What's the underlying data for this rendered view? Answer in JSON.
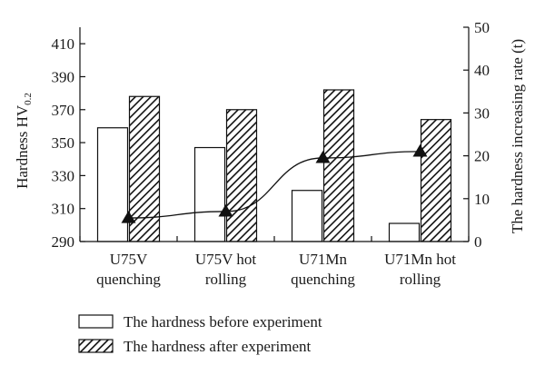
{
  "chart_data": {
    "type": "bar",
    "categories": [
      [
        "U75V",
        "quenching"
      ],
      [
        "U75V hot",
        "rolling"
      ],
      [
        "U71Mn",
        "quenching"
      ],
      [
        "U71Mn hot",
        "rolling"
      ]
    ],
    "series": [
      {
        "name": "The hardness before experiment",
        "axis": "left",
        "kind": "bar",
        "pattern": "none",
        "values": [
          359,
          347,
          321,
          301
        ]
      },
      {
        "name": "The hardness after experiment",
        "axis": "left",
        "kind": "bar",
        "pattern": "hatched",
        "values": [
          378,
          370,
          382,
          364
        ]
      },
      {
        "axis": "right",
        "kind": "line",
        "marker": "triangle",
        "values": [
          5.5,
          7.0,
          19.5,
          21.0
        ]
      }
    ],
    "ylabel": "Hardness HV",
    "ylabel_subscript": "0.2",
    "ylabel_right": "The hardness increasing rate (t)",
    "ylim": [
      290,
      420
    ],
    "yticks": [
      290,
      310,
      330,
      350,
      370,
      390,
      410
    ],
    "ylim_right": [
      0,
      50
    ],
    "yticks_right": [
      0,
      10,
      20,
      30,
      40,
      50
    ],
    "grid": false,
    "legend_position": "bottom"
  }
}
